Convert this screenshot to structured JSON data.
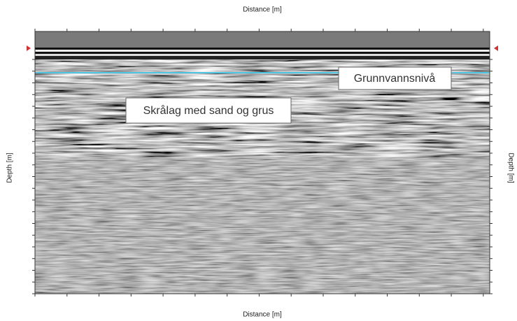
{
  "figure": {
    "top_axis_title": "Distance [m]",
    "bottom_axis_title": "Distance [m]",
    "left_axis_title": "Depth [m]",
    "right_axis_title": "Depth [m]",
    "annotations": [
      "Grunnvannsnivå",
      "Skrålag med sand og grus"
    ]
  }
}
